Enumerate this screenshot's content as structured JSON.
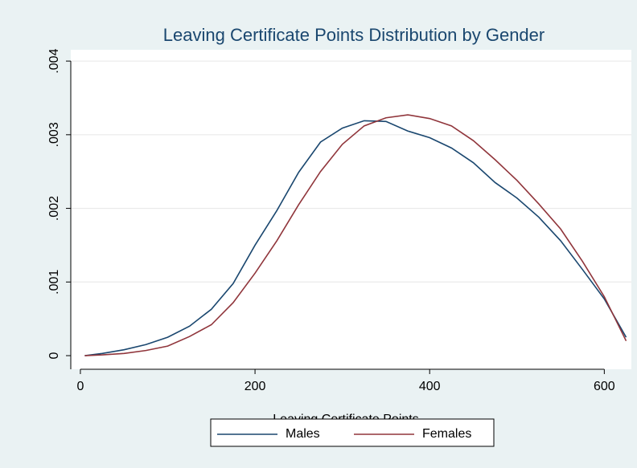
{
  "chart_data": {
    "type": "line",
    "title": "Leaving Certificate Points Distribution by Gender",
    "x_label": "Leaving Certificate Points",
    "x": [
      5,
      25,
      50,
      75,
      100,
      125,
      150,
      175,
      200,
      225,
      250,
      275,
      300,
      325,
      350,
      375,
      400,
      425,
      450,
      475,
      500,
      525,
      550,
      575,
      600,
      625
    ],
    "series": [
      {
        "name": "Males",
        "color": "#1a476f",
        "values": [
          0,
          3e-05,
          8e-05,
          0.00015,
          0.00025,
          0.0004,
          0.00063,
          0.00098,
          0.0015,
          0.00197,
          0.00249,
          0.0029,
          0.00309,
          0.00319,
          0.00318,
          0.00305,
          0.00296,
          0.00282,
          0.00262,
          0.00235,
          0.00214,
          0.00188,
          0.00156,
          0.00117,
          0.00077,
          0.00025
        ]
      },
      {
        "name": "Females",
        "color": "#90353b",
        "values": [
          0,
          1e-05,
          3e-05,
          7e-05,
          0.00013,
          0.00026,
          0.00042,
          0.00072,
          0.00112,
          0.00156,
          0.00205,
          0.0025,
          0.00287,
          0.00312,
          0.00323,
          0.00327,
          0.00322,
          0.00312,
          0.00292,
          0.00266,
          0.00238,
          0.00206,
          0.00172,
          0.00128,
          0.0008,
          0.0002
        ]
      }
    ],
    "xlim": [
      -11,
      631
    ],
    "xticks": [
      0,
      200,
      400,
      600
    ],
    "ylim": [
      -0.000185,
      0.00423
    ],
    "yticks": [
      0,
      {
        "value": 0.001,
        "label": ".001"
      },
      {
        "value": 0.002,
        "label": ".002"
      },
      {
        "value": 0.003,
        "label": ".003"
      },
      {
        "value": 0.004,
        "label": ".004"
      }
    ],
    "grid": true,
    "legend": "bottom"
  }
}
